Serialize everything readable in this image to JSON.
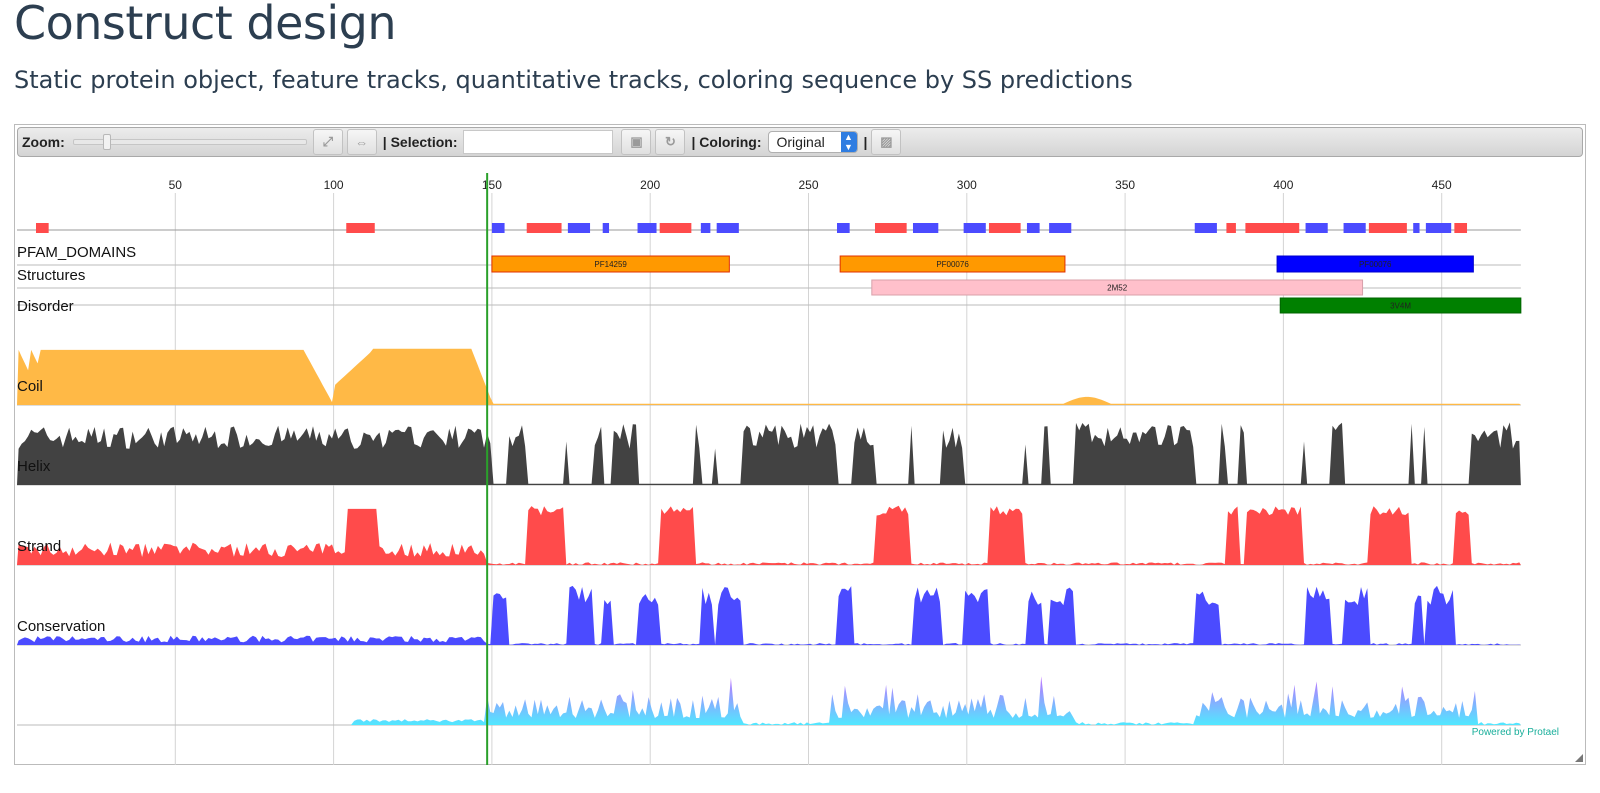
{
  "page": {
    "title": "Construct design",
    "subtitle": "Static protein object, feature tracks, quantitative tracks, coloring sequence by SS predictions"
  },
  "toolbar": {
    "zoom_label": "Zoom:",
    "zoom_level": 0.13,
    "selection_label": "| Selection:",
    "selection_value": "",
    "coloring_label": "| Coloring:",
    "coloring_value": "Original",
    "separator": "|",
    "icons": [
      "zoom-fit-icon",
      "zoom-reset-icon",
      "save-icon",
      "refresh-icon",
      "image-export-icon"
    ]
  },
  "viewer": {
    "sequence_length": 475,
    "ruler_ticks": [
      50,
      100,
      150,
      200,
      250,
      300,
      350,
      400,
      450
    ],
    "marker_position": 148.5,
    "ss_track": [
      {
        "start": 6,
        "end": 10,
        "type": "helix"
      },
      {
        "start": 104,
        "end": 113,
        "type": "helix"
      },
      {
        "start": 150,
        "end": 154,
        "type": "strand"
      },
      {
        "start": 161,
        "end": 172,
        "type": "helix"
      },
      {
        "start": 174,
        "end": 181,
        "type": "strand"
      },
      {
        "start": 185,
        "end": 187,
        "type": "strand"
      },
      {
        "start": 196,
        "end": 202,
        "type": "strand"
      },
      {
        "start": 203,
        "end": 213,
        "type": "helix"
      },
      {
        "start": 216,
        "end": 219,
        "type": "strand"
      },
      {
        "start": 221,
        "end": 228,
        "type": "strand"
      },
      {
        "start": 259,
        "end": 263,
        "type": "strand"
      },
      {
        "start": 271,
        "end": 281,
        "type": "helix"
      },
      {
        "start": 283,
        "end": 291,
        "type": "strand"
      },
      {
        "start": 299,
        "end": 306,
        "type": "strand"
      },
      {
        "start": 307,
        "end": 317,
        "type": "helix"
      },
      {
        "start": 319,
        "end": 323,
        "type": "strand"
      },
      {
        "start": 326,
        "end": 333,
        "type": "strand"
      },
      {
        "start": 372,
        "end": 379,
        "type": "strand"
      },
      {
        "start": 382,
        "end": 385,
        "type": "helix"
      },
      {
        "start": 388,
        "end": 405,
        "type": "helix"
      },
      {
        "start": 407,
        "end": 414,
        "type": "strand"
      },
      {
        "start": 419,
        "end": 426,
        "type": "strand"
      },
      {
        "start": 427,
        "end": 439,
        "type": "helix"
      },
      {
        "start": 441,
        "end": 443,
        "type": "strand"
      },
      {
        "start": 445,
        "end": 453,
        "type": "strand"
      },
      {
        "start": 454,
        "end": 458,
        "type": "helix"
      }
    ],
    "tracks": {
      "pfam_label": "PFAM_DOMAINS",
      "structures_label": "Structures",
      "disorder_label": "Disorder",
      "coil_label": "Coil",
      "helix_label": "Helix",
      "strand_label": "Strand",
      "conservation_label": "Conservation"
    },
    "pfam_domains": [
      {
        "id": "PF14259",
        "start": 150,
        "end": 225,
        "color": "#ff9900",
        "border": "#e03000"
      },
      {
        "id": "PF00076",
        "start": 260,
        "end": 331,
        "color": "#ff9900",
        "border": "#e03000"
      },
      {
        "id": "PF00076",
        "start": 398,
        "end": 460,
        "color": "#0000ff",
        "border": "#0000cc"
      }
    ],
    "structures": [
      {
        "id": "2M52",
        "start": 270,
        "end": 425,
        "color": "#ffc0cb",
        "border": "#d8a0aa"
      },
      {
        "id": "3V4M",
        "start": 399,
        "end": 475,
        "color": "#008000",
        "border": "#006400"
      }
    ],
    "colors": {
      "helix": "#ff4b4b",
      "strand": "#4b4bff",
      "disorder": "#ffb946",
      "coil": "#424242",
      "marker": "#2aa02a",
      "conservation_top": "#c070ff",
      "conservation_bottom": "#50e8ff"
    }
  },
  "footer": {
    "powered_by": "Powered by Protael"
  }
}
